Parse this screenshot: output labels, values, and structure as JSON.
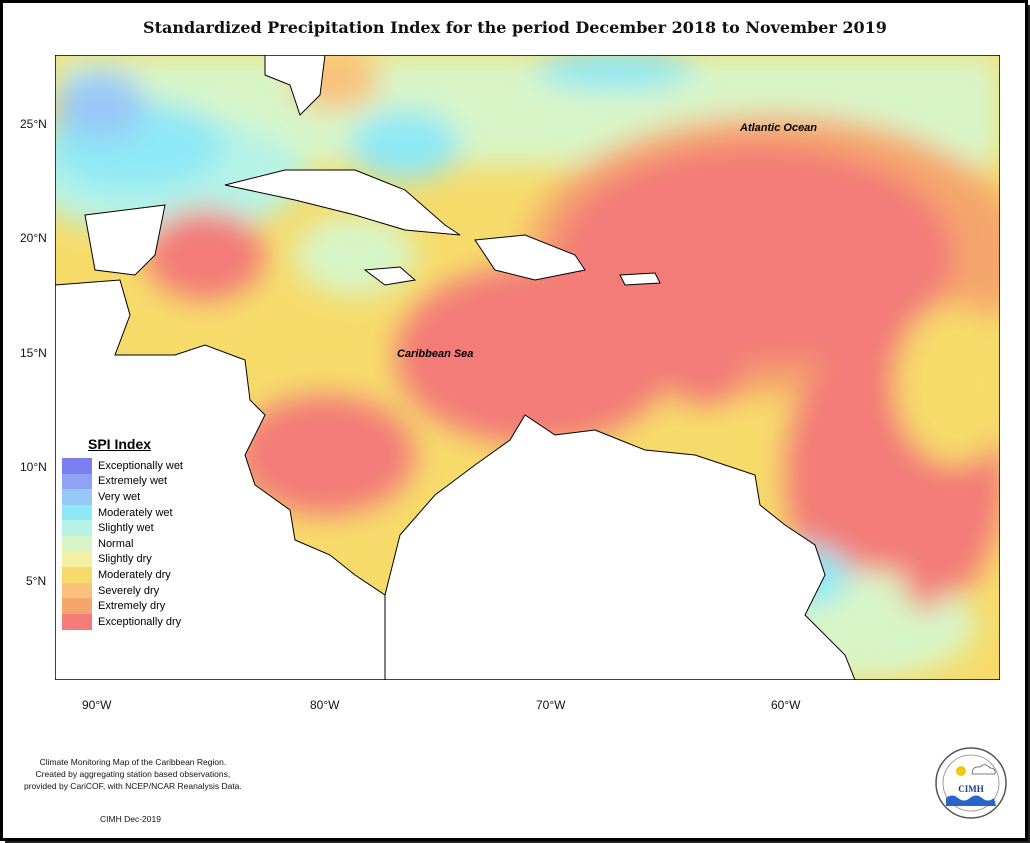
{
  "title": "Standardized Precipitation Index for the period December 2018 to November 2019",
  "map_labels": {
    "atlantic": "Atlantic Ocean",
    "caribbean": "Caribbean Sea"
  },
  "axes": {
    "lat_ticks": [
      "25°N",
      "20°N",
      "15°N",
      "10°N",
      "5°N"
    ],
    "lon_ticks": [
      "90°W",
      "80°W",
      "70°W",
      "60°W"
    ]
  },
  "legend": {
    "title": "SPI Index",
    "items": [
      {
        "label": "Exceptionally wet",
        "color": "#7b7ef0"
      },
      {
        "label": "Extremely wet",
        "color": "#8fa2f5"
      },
      {
        "label": "Very wet",
        "color": "#98c8f7"
      },
      {
        "label": "Moderately wet",
        "color": "#8ee8f5"
      },
      {
        "label": "Slightly wet",
        "color": "#b6f3e6"
      },
      {
        "label": "Normal",
        "color": "#d8f5c7"
      },
      {
        "label": "Slightly dry",
        "color": "#f3f0a3"
      },
      {
        "label": "Moderately dry",
        "color": "#f6db6b"
      },
      {
        "label": "Severely dry",
        "color": "#f8c27d"
      },
      {
        "label": "Extremely dry",
        "color": "#f5a66c"
      },
      {
        "label": "Exceptionally dry",
        "color": "#f37c78"
      }
    ]
  },
  "footer": {
    "line1": "Climate Monitoring Map of the Caribbean Region.",
    "line2": "Created by aggregating station based observations,",
    "line3": "provided by CariCOF, with NCEP/NCAR Reanalysis Data.",
    "credit": "CIMH Dec-2019",
    "logo_text": "CIMH"
  }
}
